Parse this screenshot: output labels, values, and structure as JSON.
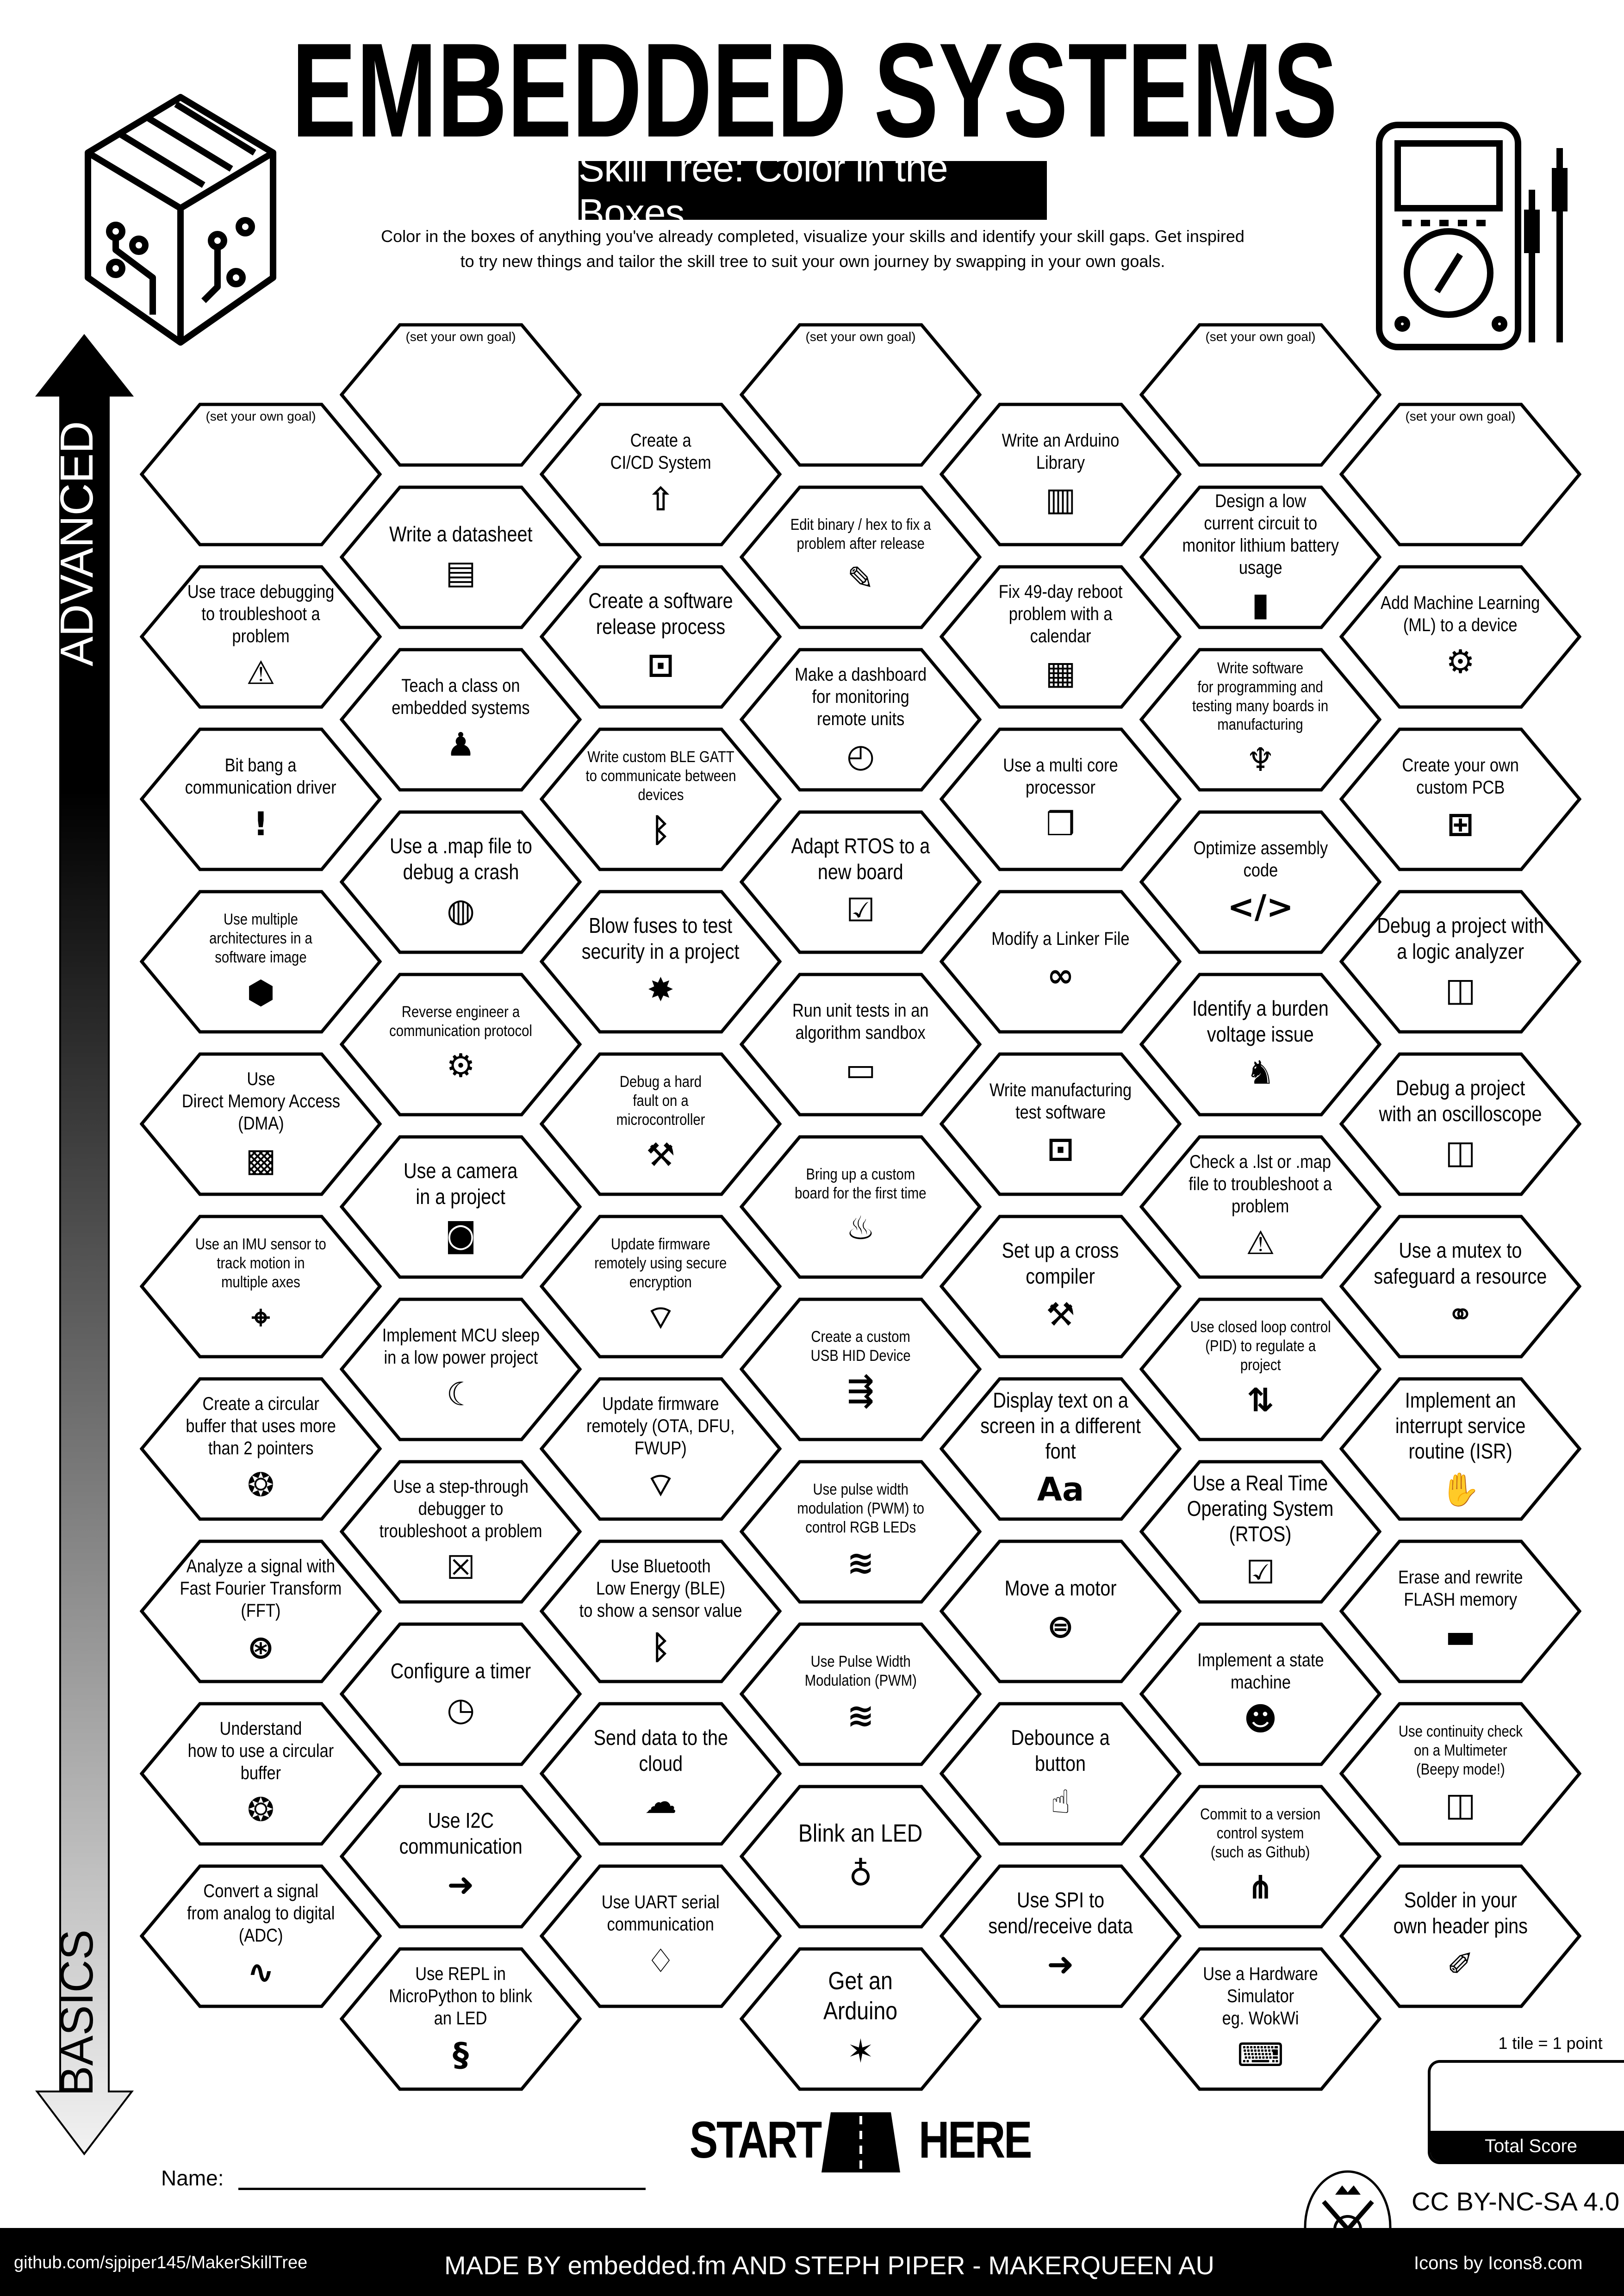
{
  "header": {
    "title": "EMBEDDED SYSTEMS",
    "subtitle": "Skill Tree: Color in the Boxes",
    "description": [
      "Color in the boxes of anything you've already completed, visualize your skills and identify your skill gaps.  Get inspired",
      "to try new things and tailor the skill tree to suit your own journey by swapping in your own goals."
    ]
  },
  "axis": {
    "advanced": "ADVANCED",
    "basics": "BASICS"
  },
  "columns": [
    [
      {
        "label": "(set your own goal)",
        "goal": true
      },
      {
        "label": "Use trace debugging\nto troubleshoot a\nproblem",
        "icon": "monitor-alert",
        "size": "m"
      },
      {
        "label": "Bit bang a\ncommunication driver",
        "icon": "exclamation",
        "size": "m"
      },
      {
        "label": "Use multiple\narchitectures in a\nsoftware image",
        "icon": "chip-cube",
        "size": "s"
      },
      {
        "label": "Use\nDirect Memory Access\n(DMA)",
        "icon": "circuit-cube",
        "size": "m"
      },
      {
        "label": "Use an IMU sensor to\ntrack motion in\nmultiple axes",
        "icon": "3d-axes",
        "size": "s"
      },
      {
        "label": "Create a circular\nbuffer that uses more\nthan 2 pointers",
        "icon": "circular-buffer",
        "size": "m"
      },
      {
        "label": "Analyze a signal with\nFast Fourier Transform\n(FFT)",
        "icon": "fft",
        "size": "m"
      },
      {
        "label": "Understand\nhow to use a circular\nbuffer",
        "icon": "circular-buffer",
        "size": "m"
      },
      {
        "label": "Convert a signal\nfrom analog to digital\n(ADC)",
        "icon": "adc-wave",
        "size": "m"
      }
    ],
    [
      {
        "label": "(set your own goal)",
        "goal": true
      },
      {
        "label": "Write a datasheet",
        "icon": "document",
        "size": "l"
      },
      {
        "label": "Teach a class on\nembedded systems",
        "icon": "teacher",
        "size": "m"
      },
      {
        "label": "Use a .map file to\ndebug a crash",
        "icon": "globe",
        "size": "l"
      },
      {
        "label": "Reverse engineer a\ncommunication protocol",
        "icon": "reverse-gear",
        "size": "s"
      },
      {
        "label": "Use a camera\nin a project",
        "icon": "camera",
        "size": "l"
      },
      {
        "label": "Implement MCU sleep\nin a low power project",
        "icon": "sleep-bed",
        "size": "m"
      },
      {
        "label": "Use a step-through\ndebugger to\ntroubleshoot a problem",
        "icon": "monitor-bug",
        "size": "m"
      },
      {
        "label": "Configure a timer",
        "icon": "stopwatch",
        "size": "l"
      },
      {
        "label": "Use I2C\ncommunication",
        "icon": "data-arrow",
        "size": "l"
      },
      {
        "label": "Use REPL in\nMicroPython to blink\nan LED",
        "icon": "python",
        "size": "m"
      }
    ],
    [
      {
        "label": "Create a\nCI/CD System",
        "icon": "rocket-box",
        "size": "m"
      },
      {
        "label": "Create a software\nrelease process",
        "icon": "software-box",
        "size": "l"
      },
      {
        "label": "Write custom BLE GATT\nto communicate between\ndevices",
        "icon": "bluetooth",
        "size": "s"
      },
      {
        "label": "Blow fuses to test\nsecurity in a project",
        "icon": "explosion",
        "size": "l"
      },
      {
        "label": "Debug a hard\nfault on a\nmicrocontroller",
        "icon": "tools",
        "size": "s"
      },
      {
        "label": "Update firmware\nremotely using secure\nencryption",
        "icon": "wifi-lock",
        "size": "s"
      },
      {
        "label": "Update firmware\nremotely (OTA, DFU,\nFWUP)",
        "icon": "wifi",
        "size": "m"
      },
      {
        "label": "Use Bluetooth\nLow Energy (BLE)\nto show a sensor value",
        "icon": "bluetooth",
        "size": "m"
      },
      {
        "label": "Send data to the\ncloud",
        "icon": "cloud",
        "size": "l"
      },
      {
        "label": "Use UART serial\ncommunication",
        "icon": "drop",
        "size": "m"
      }
    ],
    [
      {
        "label": "(set your own goal)",
        "goal": true
      },
      {
        "label": "Edit binary / hex to fix a\nproblem after release",
        "icon": "pencil",
        "size": "s"
      },
      {
        "label": "Make a dashboard\nfor monitoring\nremote units",
        "icon": "speedometer",
        "size": "m"
      },
      {
        "label": "Adapt RTOS to a\nnew board",
        "icon": "monitor-check",
        "size": "l"
      },
      {
        "label": "Run unit tests in an\nalgorithm sandbox",
        "icon": "sandbox",
        "size": "m"
      },
      {
        "label": "Bring up a custom\nboard for the first time",
        "icon": "cake",
        "size": "s"
      },
      {
        "label": "Create a custom\nUSB HID Device",
        "icon": "usb",
        "size": "s"
      },
      {
        "label": "Use pulse width\nmodulation (PWM) to\ncontrol RGB LEDs",
        "icon": "pwm-signal",
        "size": "s"
      },
      {
        "label": "Use Pulse Width\nModulation (PWM)",
        "icon": "pwm-signal",
        "size": "s"
      },
      {
        "label": "Blink an LED",
        "icon": "led",
        "size": "xl"
      },
      {
        "label": "Get an\nArduino",
        "icon": "party-popper",
        "size": "xl"
      }
    ],
    [
      {
        "label": "Write an Arduino\nLibrary",
        "icon": "books",
        "size": "m"
      },
      {
        "label": "Fix 49-day reboot\nproblem with a\ncalendar",
        "icon": "calendar",
        "size": "m"
      },
      {
        "label": "Use a multi core\nprocessor",
        "icon": "cube",
        "size": "m"
      },
      {
        "label": "Modify a Linker File",
        "icon": "link",
        "size": "m"
      },
      {
        "label": "Write manufacturing\ntest software",
        "icon": "software-box",
        "size": "m"
      },
      {
        "label": "Set up a cross\ncompiler",
        "icon": "tools",
        "size": "l"
      },
      {
        "label": "Display text on a\nscreen in a different\nfont",
        "icon": "font-aa",
        "size": "l"
      },
      {
        "label": "Move a motor",
        "icon": "motor",
        "size": "l"
      },
      {
        "label": "Debounce a\nbutton",
        "icon": "press-button",
        "size": "l"
      },
      {
        "label": "Use SPI to\nsend/receive data",
        "icon": "data-arrow",
        "size": "l"
      }
    ],
    [
      {
        "label": "(set your own goal)",
        "goal": true
      },
      {
        "label": "Design a low\ncurrent circuit to\nmonitor lithium battery\nusage",
        "icon": "battery",
        "size": "m"
      },
      {
        "label": "Write software\nfor programming and\ntesting many boards in\nmanufacturing",
        "icon": "octopus",
        "size": "s"
      },
      {
        "label": "Optimize assembly\ncode",
        "icon": "code",
        "size": "m"
      },
      {
        "label": "Identify a burden\nvoltage issue",
        "icon": "donkey",
        "size": "l"
      },
      {
        "label": "Check a .lst or .map\nfile to troubleshoot a\nproblem",
        "icon": "monitor-alert",
        "size": "m"
      },
      {
        "label": "Use closed loop control\n(PID) to regulate a\nproject",
        "icon": "loop-arrows",
        "size": "s"
      },
      {
        "label": "Use a Real Time\nOperating System\n(RTOS)",
        "icon": "monitor-check",
        "size": "l"
      },
      {
        "label": "Implement a state\nmachine",
        "icon": "robot",
        "size": "m"
      },
      {
        "label": "Commit to a version\ncontrol system\n(such as Github)",
        "icon": "git-commit",
        "size": "s"
      },
      {
        "label": "Use a Hardware\nSimulator\neg. WokWi",
        "icon": "laptop",
        "size": "m"
      }
    ],
    [
      {
        "label": "(set your own goal)",
        "goal": true
      },
      {
        "label": "Add Machine Learning\n(ML) to a device",
        "icon": "brain-gear",
        "size": "m"
      },
      {
        "label": "Create your own\ncustom PCB",
        "icon": "pcb",
        "size": "m"
      },
      {
        "label": "Debug a project with\na logic analyzer",
        "icon": "multimeter",
        "size": "l"
      },
      {
        "label": "Debug a project\nwith an oscilloscope",
        "icon": "multimeter",
        "size": "l"
      },
      {
        "label": "Use a mutex to\nsafeguard a resource",
        "icon": "handshake",
        "size": "l"
      },
      {
        "label": "Implement an\ninterrupt service\nroutine (ISR)",
        "icon": "hand-stop",
        "size": "l"
      },
      {
        "label": "Erase and rewrite\nFLASH memory",
        "icon": "chip",
        "size": "m"
      },
      {
        "label": "Use continuity check\non a Multimeter\n(Beepy mode!)",
        "icon": "multimeter",
        "size": "s"
      },
      {
        "label": "Solder in your\nown header pins",
        "icon": "soldering-iron",
        "size": "l"
      }
    ]
  ],
  "start": {
    "start": "START",
    "here": "HERE"
  },
  "name_label": "Name:",
  "score": {
    "rule": "1 tile = 1 point",
    "total_label": "Total Score"
  },
  "license": "CC BY-NC-SA 4.0",
  "footer": {
    "repo": "github.com/sjpiper145/MakerSkillTree",
    "credit": "MADE BY embedded.fm AND STEPH PIPER  -  MAKERQUEEN AU",
    "icons": "Icons by Icons8.com"
  }
}
